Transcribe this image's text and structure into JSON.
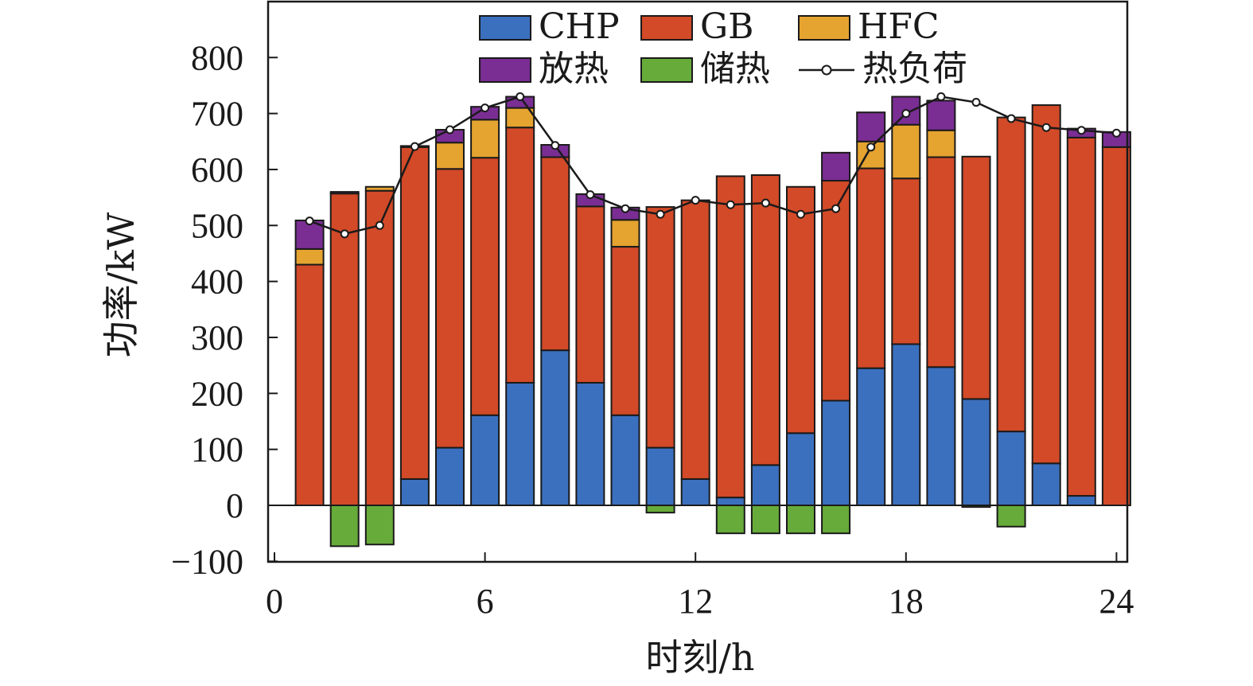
{
  "chart_data": {
    "type": "bar",
    "stacked": true,
    "xlabel": "时刻/h",
    "ylabel": "功率/kW",
    "xlim": [
      0,
      24
    ],
    "ylim": [
      -100,
      900
    ],
    "xticks": [
      0,
      6,
      12,
      18,
      24
    ],
    "yticks": [
      -100,
      0,
      100,
      200,
      300,
      400,
      500,
      600,
      700,
      800
    ],
    "grid": false,
    "legend_position": "top",
    "x": [
      1,
      2,
      3,
      4,
      5,
      6,
      7,
      8,
      9,
      10,
      11,
      12,
      13,
      14,
      15,
      16,
      17,
      18,
      19,
      20,
      21,
      22,
      23,
      24
    ],
    "series": [
      {
        "name": "CHP",
        "color": "#3B70BE",
        "values": [
          0,
          0,
          0,
          47,
          103,
          161,
          219,
          277,
          219,
          161,
          103,
          47,
          14,
          72,
          129,
          187,
          245,
          288,
          247,
          190,
          132,
          75,
          17,
          0
        ]
      },
      {
        "name": "GB",
        "color": "#D24A28",
        "values": [
          430,
          557,
          562,
          593,
          498,
          460,
          456,
          345,
          315,
          301,
          430,
          498,
          574,
          518,
          440,
          393,
          357,
          296,
          375,
          433,
          561,
          640,
          640,
          640
        ]
      },
      {
        "name": "HFC",
        "color": "#E5A330",
        "values": [
          28,
          0,
          7,
          0,
          47,
          68,
          35,
          0,
          0,
          48,
          0,
          0,
          0,
          0,
          0,
          0,
          48,
          96,
          48,
          0,
          0,
          0,
          0,
          0
        ]
      },
      {
        "name": "放热",
        "color": "#7A2E93",
        "values": [
          51,
          3,
          0,
          2,
          23,
          23,
          20,
          22,
          22,
          22,
          0,
          0,
          0,
          0,
          0,
          50,
          52,
          50,
          53,
          0,
          0,
          0,
          16,
          27
        ]
      },
      {
        "name": "储热",
        "color": "#67AB3A",
        "values": [
          0,
          -73,
          -70,
          0,
          0,
          0,
          0,
          0,
          0,
          0,
          -13,
          0,
          -50,
          -50,
          -50,
          -50,
          0,
          0,
          0,
          -3,
          -38,
          0,
          0,
          0
        ]
      }
    ],
    "line": {
      "name": "热负荷",
      "color": "#1a1a1a",
      "values": [
        508,
        485,
        500,
        641,
        671,
        710,
        730,
        643,
        555,
        530,
        520,
        545,
        537,
        540,
        520,
        530,
        640,
        700,
        730,
        720,
        691,
        675,
        670,
        665
      ]
    }
  }
}
